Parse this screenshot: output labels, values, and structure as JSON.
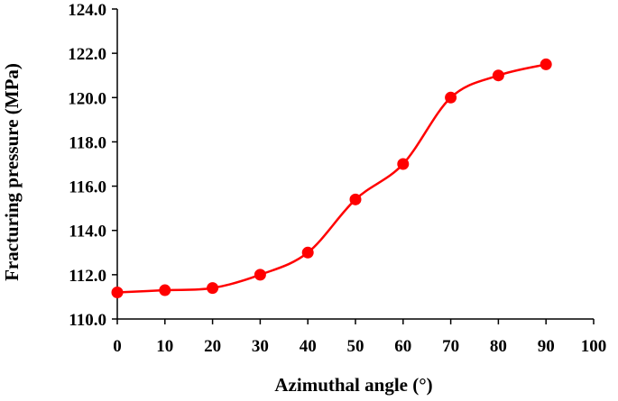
{
  "chart_data": {
    "type": "line",
    "title": "",
    "xlabel": "Azimuthal angle (°)",
    "ylabel": "Fracturing pressure (MPa)",
    "xlim": [
      0,
      100
    ],
    "ylim": [
      110.0,
      124.0
    ],
    "x_ticks": [
      "0",
      "10",
      "20",
      "30",
      "40",
      "50",
      "60",
      "70",
      "80",
      "90",
      "100"
    ],
    "y_ticks": [
      "110.0",
      "112.0",
      "114.0",
      "116.0",
      "118.0",
      "120.0",
      "122.0",
      "124.0"
    ],
    "grid": false,
    "legend": "none",
    "smooth": true,
    "series": [
      {
        "color": "#ff0000",
        "x": [
          0,
          10,
          20,
          30,
          40,
          50,
          60,
          70,
          80,
          90
        ],
        "y": [
          111.2,
          111.3,
          111.4,
          112.0,
          113.0,
          115.4,
          117.0,
          120.0,
          121.0,
          121.5
        ]
      }
    ]
  }
}
